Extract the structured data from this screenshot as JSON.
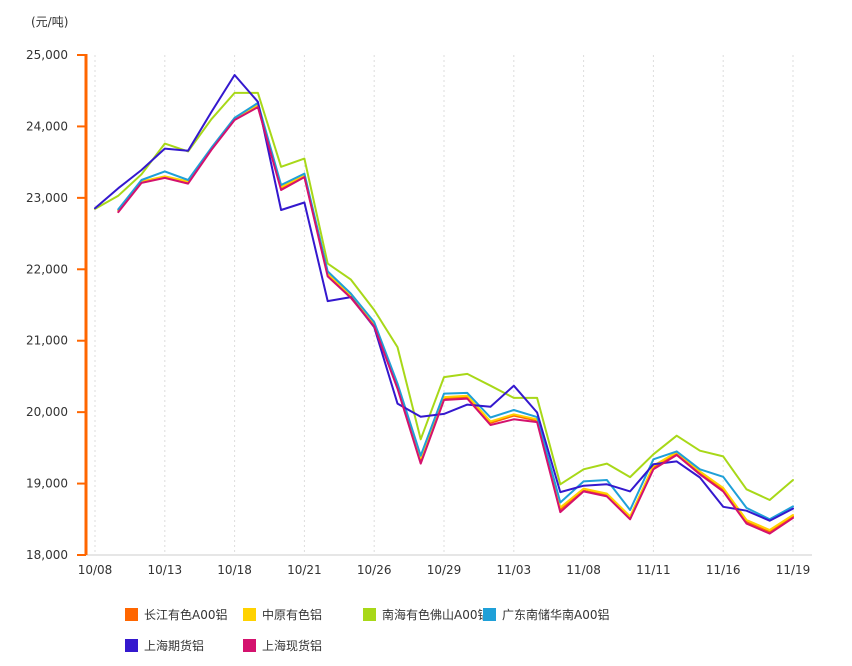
{
  "chart_data": {
    "type": "line",
    "unit": "(元/吨)",
    "x": [
      "10/08",
      "10/11",
      "10/12",
      "10/13",
      "10/14",
      "10/15",
      "10/18",
      "10/19",
      "10/20",
      "10/21",
      "10/22",
      "10/25",
      "10/26",
      "10/27",
      "10/28",
      "10/29",
      "11/01",
      "11/02",
      "11/03",
      "11/04",
      "11/05",
      "11/08",
      "11/09",
      "11/10",
      "11/11",
      "11/12",
      "11/15",
      "11/16",
      "11/17",
      "11/18",
      "11/19"
    ],
    "x_tick_every": 3,
    "x_tick_labels": [
      "10/08",
      "10/13",
      "10/18",
      "10/21",
      "10/26",
      "10/29",
      "11/03",
      "11/08",
      "11/11",
      "11/16",
      "11/19"
    ],
    "ylim": [
      18000,
      25000
    ],
    "y_tick_step": 1000,
    "y_tick_labels": [
      "18,000",
      "19,000",
      "20,000",
      "21,000",
      "22,000",
      "23,000",
      "24,000",
      "25,000"
    ],
    "grid": "vertical-dashed",
    "legend_position": "bottom",
    "series": [
      {
        "name": "长江有色A00铝",
        "color": "#FF6600",
        "values": [
          null,
          22820,
          23220,
          23290,
          23220,
          23680,
          24100,
          24290,
          23130,
          23310,
          21920,
          21620,
          21225,
          20350,
          19330,
          20190,
          20210,
          19850,
          19950,
          19880,
          18630,
          18900,
          18840,
          18510,
          19220,
          19420,
          19150,
          18910,
          18460,
          18320,
          18540
        ]
      },
      {
        "name": "中原有色铝",
        "color": "#FFD200",
        "values": [
          null,
          22830,
          23230,
          23300,
          23230,
          23690,
          24110,
          24300,
          23150,
          23320,
          21940,
          21640,
          21240,
          20370,
          19360,
          20210,
          20230,
          19870,
          19970,
          19900,
          18665,
          18930,
          18860,
          18540,
          19250,
          19440,
          19170,
          18940,
          18490,
          18350,
          18560
        ]
      },
      {
        "name": "南海有色佛山A00铝",
        "color": "#A8D818",
        "values": [
          22845,
          23030,
          23330,
          23760,
          23650,
          24100,
          24470,
          24470,
          23435,
          23550,
          22080,
          21855,
          21430,
          20910,
          19620,
          20490,
          20535,
          20370,
          20200,
          20200,
          18990,
          19200,
          19280,
          19090,
          19410,
          19670,
          19460,
          19380,
          18920,
          18770,
          19050
        ]
      },
      {
        "name": "广东南储华南A00铝",
        "color": "#1FA0D8",
        "values": [
          null,
          22840,
          23250,
          23370,
          23250,
          23700,
          24120,
          24330,
          23180,
          23340,
          21970,
          21660,
          21260,
          20400,
          19390,
          20260,
          20270,
          19925,
          20030,
          19930,
          18735,
          19030,
          19050,
          18630,
          19340,
          19450,
          19200,
          19095,
          18660,
          18500,
          18680
        ]
      },
      {
        "name": "上海期货铝",
        "color": "#3418CE",
        "values": [
          22855,
          23135,
          23390,
          23690,
          23660,
          24200,
          24720,
          24345,
          22830,
          22935,
          21555,
          21610,
          21190,
          20120,
          19935,
          19975,
          20105,
          20075,
          20370,
          19995,
          18880,
          18970,
          18990,
          18890,
          19270,
          19310,
          19085,
          18675,
          18620,
          18480,
          18650
        ]
      },
      {
        "name": "上海现货铝",
        "color": "#D4126E",
        "values": [
          null,
          22800,
          23210,
          23280,
          23200,
          23670,
          24090,
          24270,
          23110,
          23290,
          21900,
          21600,
          21200,
          20330,
          19280,
          20170,
          20190,
          19820,
          19900,
          19860,
          18600,
          18890,
          18820,
          18500,
          19200,
          19400,
          19130,
          18890,
          18440,
          18300,
          18520
        ]
      }
    ],
    "axis_colors": {
      "y_axis": "#FF6600",
      "x_axis": "#CCCCCC",
      "grid": "#DDDDDD",
      "text": "#333333"
    }
  }
}
